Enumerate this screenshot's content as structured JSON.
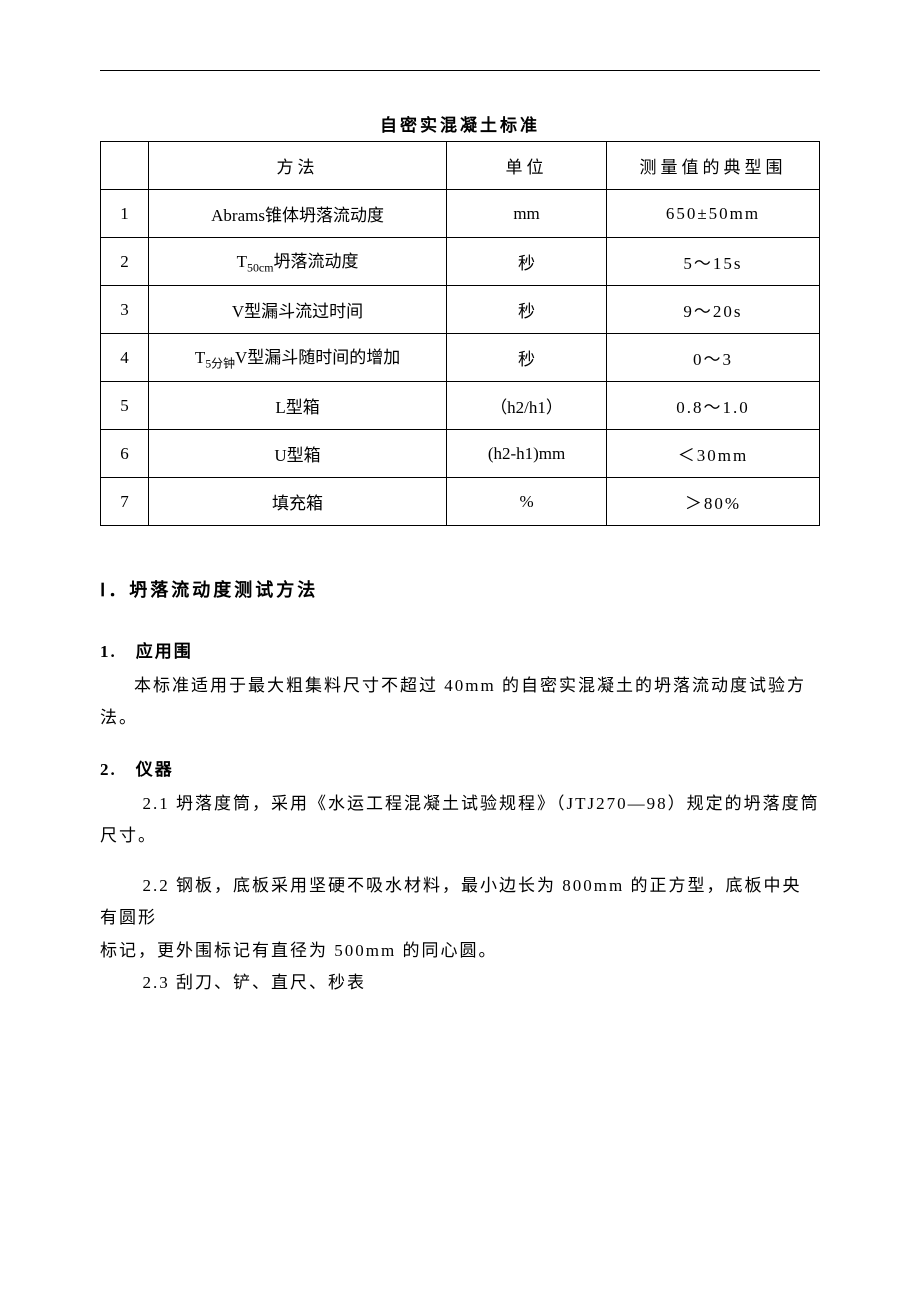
{
  "title": "自密实混凝土标准",
  "table": {
    "headers": {
      "method": "方法",
      "unit": "单位",
      "range": "测量值的典型围"
    },
    "rows": [
      {
        "num": "1",
        "method": "Abrams锥体坍落流动度",
        "unit": "mm",
        "range": "650±50mm"
      },
      {
        "num": "2",
        "method_html": "T<sub>50cm</sub>坍落流动度",
        "unit": "秒",
        "range": "5～15s"
      },
      {
        "num": "3",
        "method": "V型漏斗流过时间",
        "unit": "秒",
        "range": "9～20s"
      },
      {
        "num": "4",
        "method_html": "T<sub>5分钟</sub>V型漏斗随时间的增加",
        "unit": "秒",
        "range": "0～3"
      },
      {
        "num": "5",
        "method": "L型箱",
        "unit": "（h2/h1）",
        "range": "0.8～1.0"
      },
      {
        "num": "6",
        "method": "U型箱",
        "unit": "(h2-h1)mm",
        "range": "＜30mm"
      },
      {
        "num": "7",
        "method": "填充箱",
        "unit": "%",
        "range": "＞80%"
      }
    ]
  },
  "section1": {
    "title": "Ⅰ．坍落流动度测试方法",
    "item1": {
      "heading": "1.　应用围",
      "text": "本标准适用于最大粗集料尺寸不超过 40mm 的自密实混凝土的坍落流动度试验方法。"
    },
    "item2": {
      "heading": "2.　仪器",
      "sub1": "2.1  坍落度筒，采用《水运工程混凝土试验规程》（JTJ270—98）规定的坍落度筒尺寸。",
      "sub2a": "2.2  钢板，底板采用坚硬不吸水材料，最小边长为 800mm 的正方型，底板中央有圆形",
      "sub2b": "标记，更外围标记有直径为 500mm 的同心圆。",
      "sub3": "2.3  刮刀、铲、直尺、秒表"
    }
  }
}
